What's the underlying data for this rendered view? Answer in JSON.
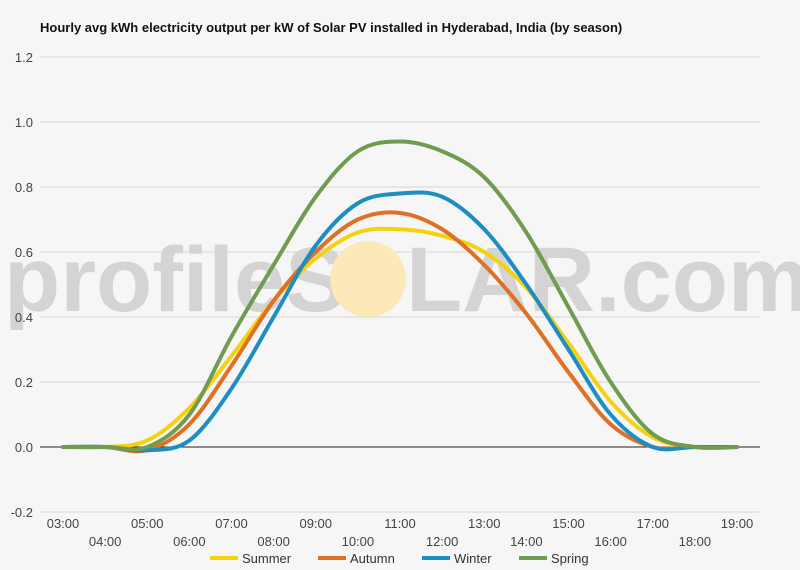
{
  "watermark": {
    "text_left": "profileS",
    "text_right": "LAR.com",
    "sun_color": "#fbe9b8"
  },
  "chart_data": {
    "type": "line",
    "title": "Hourly avg kWh electricity output per kW of Solar PV installed in Hyderabad, India (by season)",
    "xlabel": "",
    "ylabel": "",
    "ylim": [
      -0.2,
      1.2
    ],
    "yticks": [
      "1.2",
      "1.0",
      "0.8",
      "0.6",
      "0.4",
      "0.2",
      "0.0",
      "-0.2"
    ],
    "ytick_values": [
      1.2,
      1.0,
      0.8,
      0.6,
      0.4,
      0.2,
      0.0,
      -0.2
    ],
    "categories": [
      "03:00",
      "04:00",
      "05:00",
      "06:00",
      "07:00",
      "08:00",
      "09:00",
      "10:00",
      "11:00",
      "12:00",
      "13:00",
      "14:00",
      "15:00",
      "16:00",
      "17:00",
      "18:00",
      "19:00"
    ],
    "grid": true,
    "legend_position": "bottom",
    "series": [
      {
        "name": "Summer",
        "color": "#f5d10f",
        "values": [
          0.0,
          0.0,
          0.02,
          0.12,
          0.28,
          0.45,
          0.58,
          0.66,
          0.67,
          0.65,
          0.6,
          0.49,
          0.32,
          0.14,
          0.03,
          0.0,
          0.0
        ]
      },
      {
        "name": "Autumn",
        "color": "#e07025",
        "values": [
          0.0,
          0.0,
          -0.01,
          0.07,
          0.25,
          0.45,
          0.6,
          0.7,
          0.72,
          0.67,
          0.56,
          0.41,
          0.23,
          0.07,
          0.0,
          0.0,
          0.0
        ]
      },
      {
        "name": "Winter",
        "color": "#1c8ec2",
        "values": [
          0.0,
          0.0,
          -0.01,
          0.02,
          0.18,
          0.4,
          0.62,
          0.75,
          0.78,
          0.77,
          0.67,
          0.5,
          0.3,
          0.1,
          0.0,
          0.0,
          0.0
        ]
      },
      {
        "name": "Spring",
        "color": "#6f9c50",
        "values": [
          0.0,
          0.0,
          0.0,
          0.1,
          0.34,
          0.56,
          0.77,
          0.91,
          0.94,
          0.91,
          0.83,
          0.66,
          0.43,
          0.2,
          0.04,
          0.0,
          0.0
        ]
      }
    ]
  }
}
